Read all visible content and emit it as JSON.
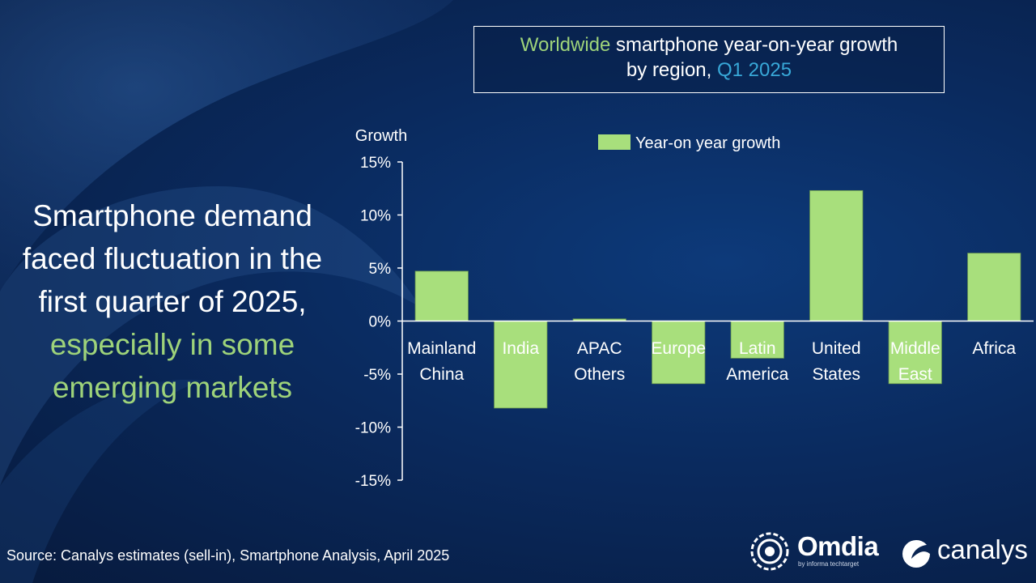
{
  "title": {
    "part1": "Worldwide",
    "part2": " smartphone year-on-year growth",
    "part3": "by region, ",
    "part4": "Q1 2025"
  },
  "headline": {
    "white": "Smartphone demand faced fluctuation in the first quarter of 2025,",
    "green": " especially in some emerging markets"
  },
  "source": "Source: Canalys estimates (sell-in), Smartphone Analysis, April 2025",
  "logos": {
    "omdia": "Omdia",
    "omdia_sub": "by informa techtarget",
    "canalys": "canalys"
  },
  "colors": {
    "bar": "#a8df7c",
    "bar_edge": "#6f9d50",
    "axis": "#ffffff",
    "highlight_green": "#9ed37a",
    "highlight_blue": "#38a8d8"
  },
  "chart_data": {
    "type": "bar",
    "ylabel": "Growth",
    "legend": "Year-on year growth",
    "legend_position": "top",
    "ylim": [
      -15,
      15
    ],
    "yticks": [
      15,
      10,
      5,
      0,
      -5,
      -10,
      -15
    ],
    "ytick_labels": [
      "15%",
      "10%",
      "5%",
      "0%",
      "-5%",
      "-10%",
      "-15%"
    ],
    "categories": [
      [
        "Mainland",
        "China"
      ],
      [
        "India"
      ],
      [
        "APAC",
        "Others"
      ],
      [
        "Europe"
      ],
      [
        "Latin",
        "America"
      ],
      [
        "United",
        "States"
      ],
      [
        "Middle",
        "East"
      ],
      [
        "Africa"
      ]
    ],
    "values": [
      4.7,
      -8.2,
      0.2,
      -5.9,
      -3.5,
      12.3,
      -5.9,
      6.4
    ],
    "grid": false
  }
}
